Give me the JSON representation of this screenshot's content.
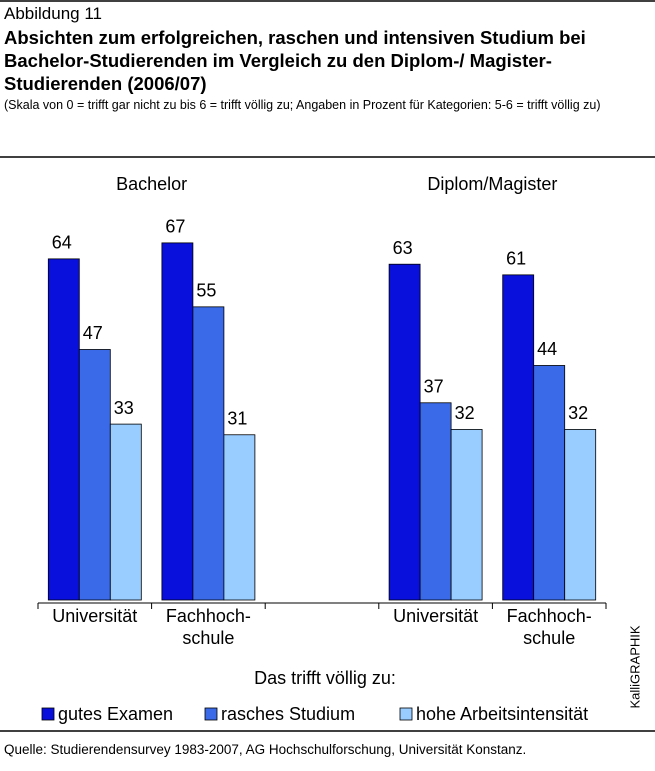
{
  "header": {
    "figure": "Abbildung 11",
    "title": "Absichten zum erfolgreichen, raschen und intensiven Studium bei Bachelor-Studierenden im Vergleich zu den Diplom-/ Magister-Studierenden (2006/07)",
    "subtitle": "(Skala von 0 = trifft gar nicht zu bis 6 = trifft völlig zu; Angaben in Prozent für Kategorien: 5-6 = trifft völlig zu)"
  },
  "chart_data": {
    "type": "bar",
    "groups": [
      "Bachelor",
      "Diplom/Magister"
    ],
    "categories": [
      [
        "Universität"
      ],
      [
        "Fachhoch-",
        "schule"
      ],
      [
        "Universität"
      ],
      [
        "Fachhoch-",
        "schule"
      ]
    ],
    "series": [
      {
        "name": "gutes Examen",
        "color": "#0a10dc",
        "values": [
          64,
          67,
          63,
          61
        ]
      },
      {
        "name": "rasches Studium",
        "color": "#3a6ae8",
        "values": [
          47,
          55,
          37,
          44
        ]
      },
      {
        "name": "hohe Arbeitsintensität",
        "color": "#99ccff",
        "values": [
          33,
          31,
          32,
          32
        ]
      }
    ],
    "legend_title": "Das trifft völlig zu:",
    "credit": "KalliGRAPHIK"
  },
  "footer": {
    "source": "Quelle: Studierendensurvey 1983-2007, AG Hochschulforschung, Universität Konstanz."
  }
}
